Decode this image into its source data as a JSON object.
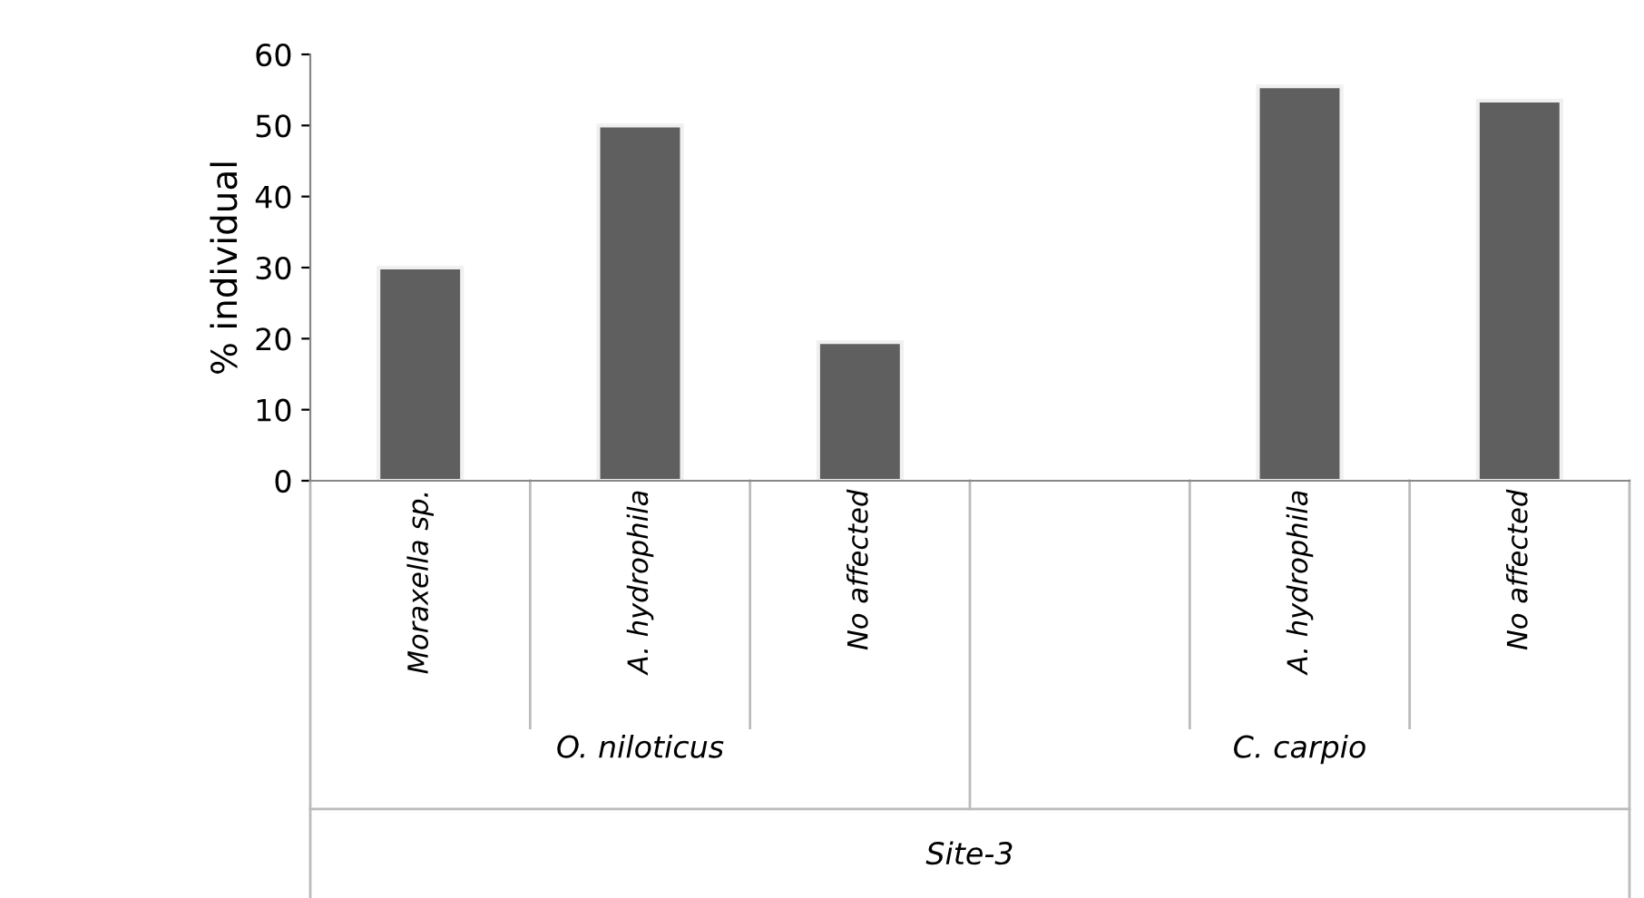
{
  "chart_data": {
    "type": "bar",
    "ylabel": "% individual",
    "categories": [
      "Moraxella sp.",
      "A. hydrophila",
      "No affected",
      null,
      "A. hydrophila",
      "No affected"
    ],
    "values": [
      30,
      50,
      19.5,
      null,
      55.5,
      53.5
    ],
    "color": "#5f5f5f",
    "ylim": [
      0,
      60
    ],
    "yticks": [
      0,
      10,
      20,
      30,
      40,
      50,
      60
    ],
    "grid": false,
    "annotations": [
      "O. niloticus",
      "C. carpio",
      "Site-3"
    ]
  }
}
